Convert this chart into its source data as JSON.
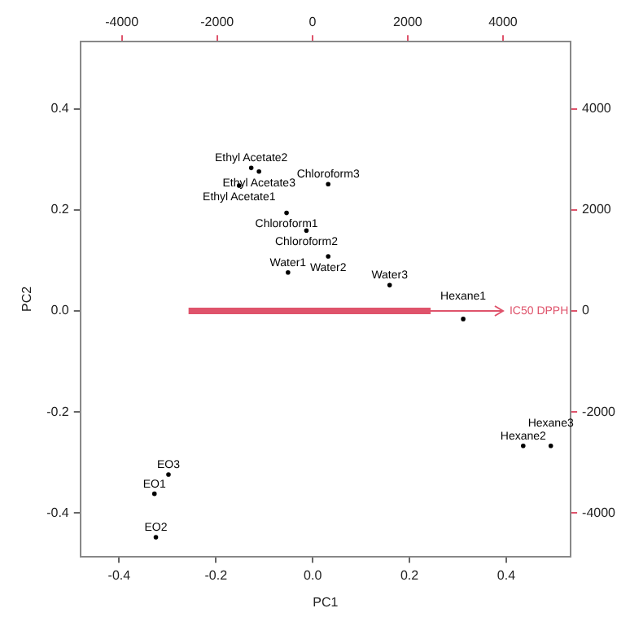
{
  "chart_data": {
    "type": "scatter",
    "xlabel": "PC1",
    "ylabel": "PC2",
    "xlim": [
      -0.48,
      0.533
    ],
    "ylim": [
      -0.486,
      0.533
    ],
    "xticks": [
      -0.4,
      -0.2,
      {
        "value": 0,
        "label": "0.0"
      },
      0.2,
      0.4
    ],
    "yticks": [
      -0.4,
      -0.2,
      {
        "value": 0,
        "label": "0.0"
      },
      0.2,
      0.4
    ],
    "x2lim": [
      -4870,
      5420
    ],
    "x2ticks": [
      -4000,
      -2000,
      0,
      2000,
      4000
    ],
    "y2lim": [
      -4860,
      5330
    ],
    "y2ticks": [
      -4000,
      -2000,
      0,
      2000,
      4000
    ],
    "grid": false,
    "marker": "circle",
    "annotations": [
      "IC50 DPPH"
    ],
    "series": [
      {
        "color": "#000000",
        "x": [
          -0.127,
          -0.111,
          -0.152,
          0.032,
          -0.054,
          -0.013,
          0.032,
          -0.051,
          0.159,
          0.311,
          0.435,
          0.492,
          -0.298,
          -0.327,
          -0.324
        ],
        "values": [
          0.283,
          0.276,
          0.248,
          0.251,
          0.194,
          0.159,
          0.108,
          0.076,
          0.051,
          -0.016,
          -0.267,
          -0.267,
          -0.324,
          -0.362,
          -0.448
        ],
        "value_labels": [
          "Ethyl Acetate2",
          "Ethyl Acetate3",
          "Ethyl Acetate1",
          "Chloroform3",
          "Chloroform1",
          "Chloroform2",
          "Water2",
          "Water1",
          "Water3",
          "Hexane1",
          "Hexane2",
          "Hexane3",
          "EO3",
          "EO1",
          "EO2"
        ]
      }
    ]
  }
}
